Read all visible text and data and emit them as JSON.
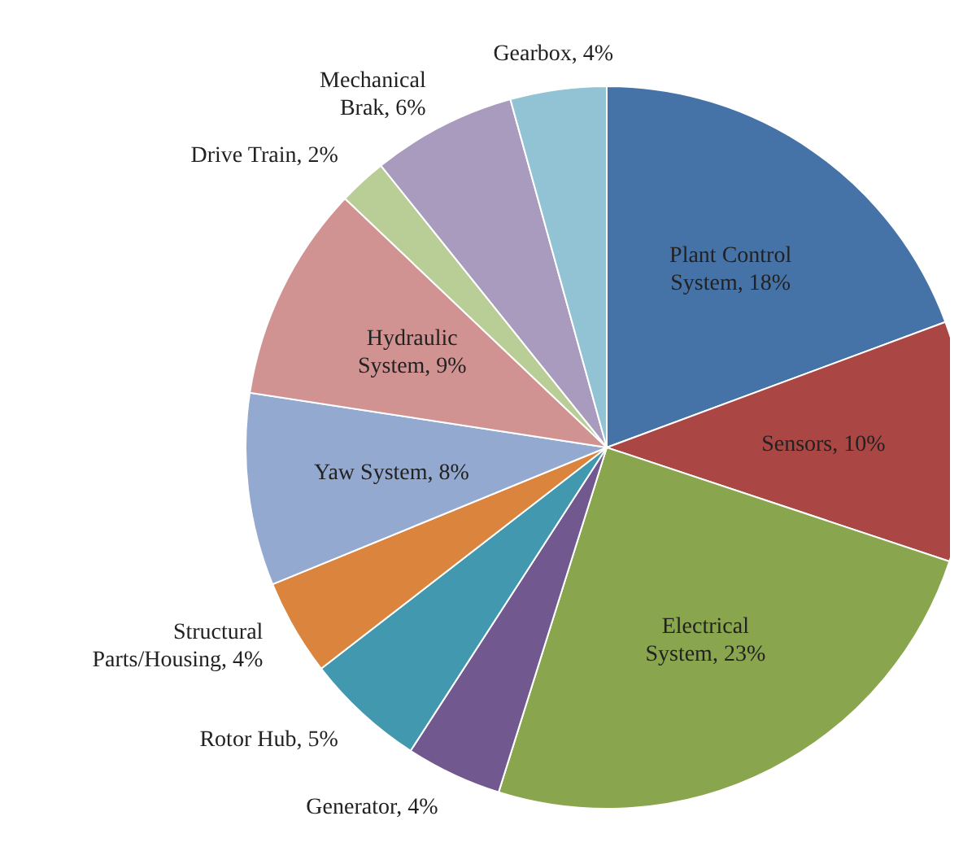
{
  "chart_data": {
    "type": "pie",
    "categories": [
      "Plant Control System",
      "Sensors",
      "Electrical System",
      "Generator",
      "Rotor Hub",
      "Structural Parts/Housing",
      "Yaw System",
      "Hydraulic System",
      "Drive Train",
      "Mechanical Brak",
      "Gearbox"
    ],
    "values": [
      18,
      10,
      23,
      4,
      5,
      4,
      8,
      9,
      2,
      6,
      4
    ],
    "value_labels": [
      "18%",
      "10%",
      "23%",
      "4%",
      "5%",
      "4%",
      "8%",
      "9%",
      "2%",
      "6%",
      "4%"
    ],
    "colors": [
      "#4572a7",
      "#aa4643",
      "#89a54e",
      "#71588f",
      "#4198af",
      "#db843d",
      "#93a9cf",
      "#d19392",
      "#b9cd96",
      "#a99bbd",
      "#91c3d5"
    ],
    "legend": false
  }
}
